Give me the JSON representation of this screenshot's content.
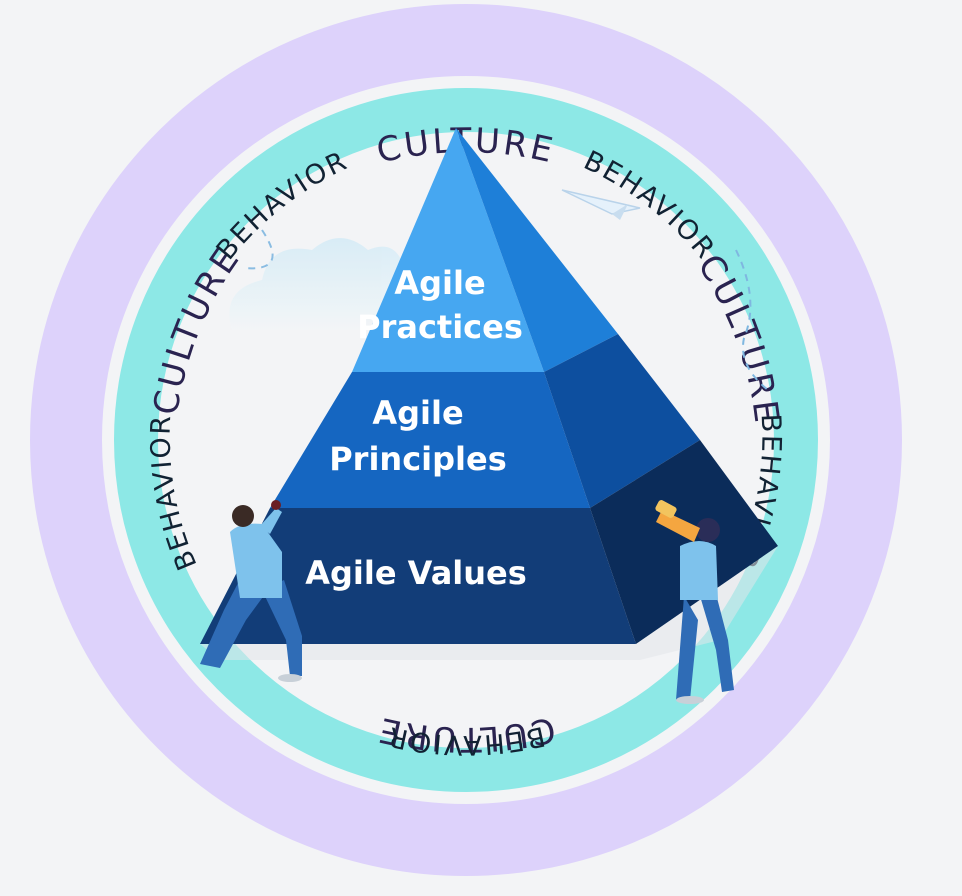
{
  "outer_ring": {
    "labels": [
      "CULTURE",
      "CULTURE",
      "CULTURE",
      "CULTURE"
    ],
    "color": "#ddd2fb"
  },
  "inner_ring": {
    "labels": [
      "BEHAVIOR",
      "BEHAVIOR",
      "BEHAVIOR",
      "BEHAVIOR",
      "BEHAVIOR"
    ],
    "color": "#8de8e6"
  },
  "pyramid": {
    "tiers": [
      {
        "line1": "Agile",
        "line2": "Practices",
        "color": "#46a7f1"
      },
      {
        "line1": "Agile",
        "line2": "Principles",
        "color": "#1566c1"
      },
      {
        "line1": "Agile Values",
        "line2": "",
        "color": "#123d78"
      }
    ]
  },
  "colors": {
    "background": "#f3f4f6",
    "figure_shirt": "#7ec2ec",
    "figure_pants": "#2f6cb6"
  },
  "icons": [
    "paper-plane-icon",
    "cloud-icon",
    "telescope-icon"
  ]
}
